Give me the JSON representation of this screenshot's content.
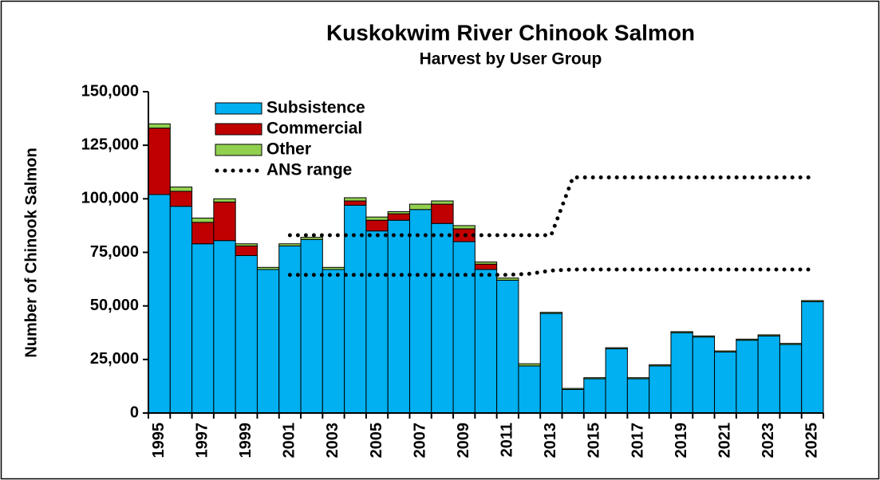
{
  "chart_data": {
    "type": "stacked_bar",
    "title": "Kuskokwim River Chinook Salmon",
    "subtitle": "Harvest by User Group",
    "y_label": "Number of Chinook Salmon",
    "categories": [
      "1995",
      null,
      "1997",
      null,
      "1999",
      null,
      "2001",
      null,
      "2003",
      null,
      "2005",
      null,
      "2007",
      null,
      "2009",
      null,
      "2011",
      null,
      "2013",
      null,
      "2015",
      null,
      "2017",
      null,
      "2019",
      null,
      "2021",
      null,
      "2023",
      null,
      "2025"
    ],
    "series": [
      {
        "name": "Subsistence",
        "color": "#00b0f0",
        "values": [
          102000,
          96500,
          79000,
          80500,
          73500,
          67000,
          78000,
          81000,
          67000,
          97000,
          85000,
          90000,
          95000,
          88500,
          80000,
          67000,
          62000,
          22000,
          46500,
          11000,
          16000,
          30000,
          16000,
          22000,
          37500,
          35500,
          28500,
          34000,
          36000,
          32000,
          52000
        ]
      },
      {
        "name": "Commercial",
        "color": "#c00000",
        "values": [
          31000,
          7000,
          10000,
          18000,
          4500,
          0,
          0,
          0,
          0,
          2000,
          5000,
          3000,
          0,
          9000,
          6000,
          2500,
          0,
          0,
          0,
          0,
          0,
          0,
          0,
          0,
          0,
          0,
          0,
          0,
          0,
          0,
          0
        ]
      },
      {
        "name": "Other",
        "color": "#92d050",
        "values": [
          2000,
          2000,
          2000,
          1500,
          1000,
          1000,
          1000,
          1000,
          1000,
          1500,
          1500,
          1000,
          2500,
          1500,
          1500,
          1000,
          1000,
          1000,
          500,
          500,
          500,
          500,
          500,
          500,
          500,
          500,
          500,
          500,
          500,
          500,
          500
        ]
      }
    ],
    "ans_range": {
      "name": "ANS range",
      "color": "#000000",
      "lower": [
        null,
        null,
        null,
        null,
        null,
        null,
        64500,
        64500,
        64500,
        64500,
        64500,
        64500,
        64500,
        64500,
        64500,
        64500,
        64500,
        65000,
        66500,
        67000,
        67000,
        67000,
        67000,
        67000,
        67000,
        67000,
        67000,
        67000,
        67000,
        67000,
        67000
      ],
      "upper": [
        null,
        null,
        null,
        null,
        null,
        null,
        83000,
        83000,
        83000,
        83000,
        83000,
        83000,
        83000,
        83000,
        83000,
        83000,
        83000,
        83000,
        83000,
        110000,
        110000,
        110000,
        110000,
        110000,
        110000,
        110000,
        110000,
        110000,
        110000,
        110000,
        110000
      ]
    },
    "ylim": [
      0,
      150000
    ],
    "yticks": [
      0,
      {
        "value": 25000,
        "label": "25,000"
      },
      {
        "value": 50000,
        "label": "50,000"
      },
      {
        "value": 75000,
        "label": "75,000"
      },
      {
        "value": 100000,
        "label": "100,000"
      },
      {
        "value": 125000,
        "label": "125,000"
      },
      {
        "value": 150000,
        "label": "150,000"
      }
    ],
    "grid": false,
    "legend": "upper left"
  }
}
